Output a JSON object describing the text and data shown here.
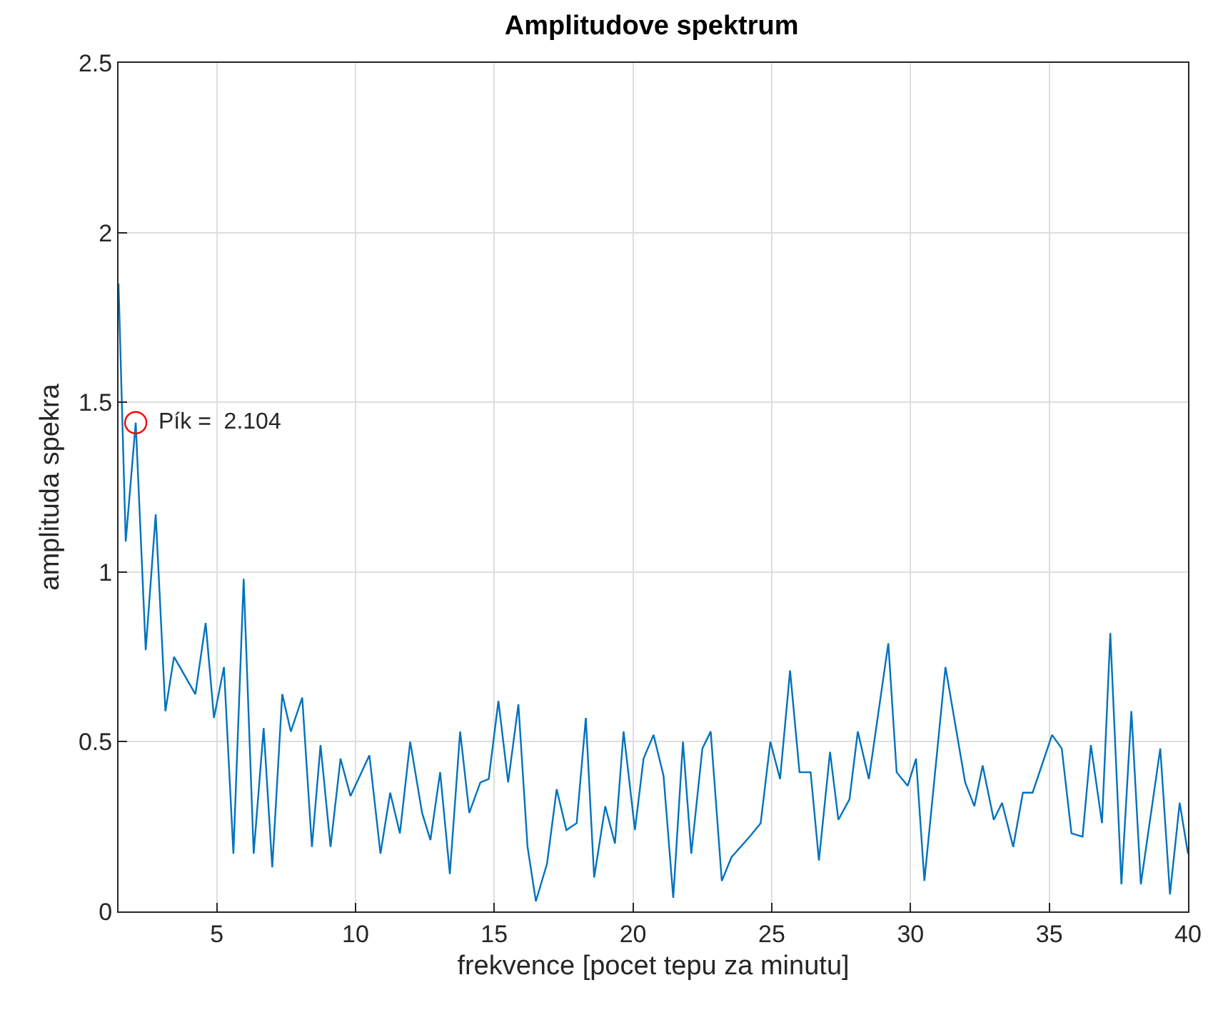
{
  "chart_data": {
    "type": "line",
    "title": "Amplitudove spektrum",
    "xlabel": "frekvence [pocet tepu za minutu]",
    "ylabel": "amplituda spekra",
    "xlim": [
      1.46,
      40
    ],
    "xticks": [
      5,
      10,
      15,
      20,
      25,
      30,
      35,
      40
    ],
    "ylim": [
      0,
      2.5
    ],
    "yticks": [
      0,
      0.5,
      1,
      1.5,
      2,
      2.5
    ],
    "grid": true,
    "marker": "none",
    "line_style": "solid",
    "annotations": [
      {
        "text": "Pík =  2.104",
        "x": 2.08,
        "y": 1.44
      }
    ],
    "series": [
      {
        "color": "#0072bd",
        "x": [
          1.46,
          1.72,
          2.08,
          2.44,
          2.8,
          3.15,
          3.46,
          4.23,
          4.6,
          4.9,
          5.26,
          5.6,
          5.97,
          6.33,
          6.69,
          7.0,
          7.36,
          7.67,
          8.08,
          8.43,
          8.74,
          9.1,
          9.46,
          9.82,
          10.5,
          10.9,
          11.25,
          11.6,
          11.97,
          12.4,
          12.7,
          13.05,
          13.4,
          13.77,
          14.1,
          14.5,
          14.8,
          15.15,
          15.5,
          15.87,
          16.2,
          16.5,
          16.9,
          17.25,
          17.6,
          17.97,
          18.3,
          18.6,
          19.0,
          19.35,
          19.66,
          20.07,
          20.38,
          20.74,
          21.1,
          21.45,
          21.8,
          22.1,
          22.5,
          22.8,
          23.2,
          23.55,
          24.2,
          24.6,
          24.95,
          25.3,
          25.66,
          26.0,
          26.4,
          26.7,
          27.1,
          27.4,
          27.8,
          28.1,
          28.5,
          29.2,
          29.5,
          29.9,
          30.2,
          30.5,
          31.26,
          31.97,
          32.3,
          32.6,
          33.0,
          33.3,
          33.7,
          34.05,
          34.4,
          35.1,
          35.45,
          35.8,
          36.2,
          36.5,
          36.9,
          37.2,
          37.6,
          37.96,
          38.3,
          39.0,
          39.35,
          39.7,
          40.0
        ],
        "values": [
          1.85,
          1.09,
          1.44,
          0.77,
          1.17,
          0.59,
          0.75,
          0.64,
          0.85,
          0.57,
          0.72,
          0.17,
          0.98,
          0.17,
          0.54,
          0.13,
          0.64,
          0.53,
          0.63,
          0.19,
          0.49,
          0.19,
          0.45,
          0.34,
          0.46,
          0.17,
          0.35,
          0.23,
          0.5,
          0.29,
          0.21,
          0.41,
          0.11,
          0.53,
          0.29,
          0.38,
          0.39,
          0.62,
          0.38,
          0.61,
          0.19,
          0.03,
          0.14,
          0.36,
          0.24,
          0.26,
          0.57,
          0.1,
          0.31,
          0.2,
          0.53,
          0.24,
          0.45,
          0.52,
          0.4,
          0.04,
          0.5,
          0.17,
          0.48,
          0.53,
          0.09,
          0.16,
          0.22,
          0.26,
          0.5,
          0.39,
          0.71,
          0.41,
          0.41,
          0.15,
          0.47,
          0.27,
          0.33,
          0.53,
          0.39,
          0.79,
          0.41,
          0.37,
          0.45,
          0.09,
          0.72,
          0.38,
          0.31,
          0.43,
          0.27,
          0.32,
          0.19,
          0.35,
          0.35,
          0.52,
          0.48,
          0.23,
          0.22,
          0.49,
          0.26,
          0.82,
          0.08,
          0.59,
          0.08,
          0.48,
          0.05,
          0.32,
          0.17
        ]
      },
      {
        "type": "scatter",
        "marker": "circle",
        "color": "#ff0000",
        "x": [
          2.08
        ],
        "values": [
          1.44
        ]
      }
    ]
  }
}
